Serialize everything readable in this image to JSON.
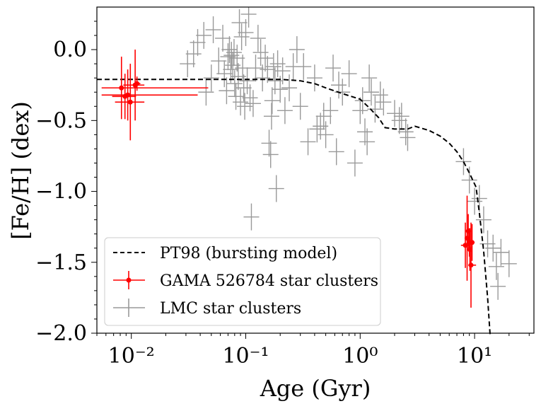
{
  "chart_data": {
    "type": "scatter",
    "xscale": "log",
    "xlim": [
      0.005,
      33
    ],
    "ylim": [
      -2.0,
      0.3
    ],
    "xlabel": "Age (Gyr)",
    "ylabel": "[Fe/H] (dex)",
    "x_ticks": [
      {
        "value": 0.01,
        "label": "10⁻²"
      },
      {
        "value": 0.1,
        "label": "10⁻¹"
      },
      {
        "value": 1,
        "label": "10⁰"
      },
      {
        "value": 10,
        "label": "10¹"
      }
    ],
    "y_ticks": [
      {
        "value": 0.0,
        "label": "0.0"
      },
      {
        "value": -0.5,
        "label": "−0.5"
      },
      {
        "value": -1.0,
        "label": "−1.0"
      },
      {
        "value": -1.5,
        "label": "−1.5"
      },
      {
        "value": -2.0,
        "label": "−2.0"
      }
    ],
    "legend": {
      "position": "lower-left",
      "entries": [
        {
          "label": "PT98 (bursting model)",
          "style": "dashed-line",
          "color": "#000000"
        },
        {
          "label": "GAMA 526784 star clusters",
          "style": "errorbar-point",
          "color": "#ff0000"
        },
        {
          "label": "LMC star clusters",
          "style": "errorbar-cross",
          "color": "#999999"
        }
      ]
    },
    "series": [
      {
        "name": "PT98 (bursting model)",
        "color": "#000000",
        "style": "dashed",
        "points": [
          [
            0.005,
            -0.21
          ],
          [
            0.1,
            -0.21
          ],
          [
            0.2,
            -0.21
          ],
          [
            0.3,
            -0.22
          ],
          [
            0.4,
            -0.24
          ],
          [
            0.5,
            -0.27
          ],
          [
            0.7,
            -0.31
          ],
          [
            1.0,
            -0.35
          ],
          [
            1.2,
            -0.41
          ],
          [
            1.45,
            -0.48
          ],
          [
            1.65,
            -0.55
          ],
          [
            2.0,
            -0.56
          ],
          [
            2.6,
            -0.56
          ],
          [
            3.0,
            -0.54
          ],
          [
            4.0,
            -0.57
          ],
          [
            5.0,
            -0.61
          ],
          [
            6.0,
            -0.66
          ],
          [
            7.0,
            -0.72
          ],
          [
            8.0,
            -0.79
          ],
          [
            9.0,
            -0.87
          ],
          [
            10.3,
            -0.97
          ],
          [
            11.0,
            -1.15
          ],
          [
            12.0,
            -1.42
          ],
          [
            13.0,
            -1.75
          ],
          [
            13.7,
            -2.05
          ]
        ]
      },
      {
        "name": "GAMA 526784 star clusters",
        "color": "#ff0000",
        "points": [
          {
            "x": 0.0082,
            "y": -0.27,
            "xlo": 0.0055,
            "xhi": 0.047,
            "yerr": 0.22
          },
          {
            "x": 0.0088,
            "y": -0.33,
            "xlo": 0.0068,
            "xhi": 0.011,
            "yerr": 0.16
          },
          {
            "x": 0.0093,
            "y": -0.32,
            "xlo": 0.0055,
            "xhi": 0.038,
            "yerr": 0.18
          },
          {
            "x": 0.0098,
            "y": -0.37,
            "xlo": 0.0072,
            "xhi": 0.013,
            "yerr": 0.27
          },
          {
            "x": 0.0108,
            "y": -0.25,
            "xlo": 0.0085,
            "xhi": 0.013,
            "yerr": 0.25
          },
          {
            "x": 0.0112,
            "y": -0.24,
            "xlo": 0.0105,
            "xhi": 0.012,
            "yerr": 0.05
          },
          {
            "x": 8.3,
            "y": -1.38,
            "xlo": 7.6,
            "xhi": 9.0,
            "yerr": 0.16
          },
          {
            "x": 8.6,
            "y": -1.33,
            "xlo": 8.2,
            "xhi": 9.1,
            "yerr": 0.3
          },
          {
            "x": 8.8,
            "y": -1.28,
            "xlo": 8.4,
            "xhi": 9.2,
            "yerr": 0.12
          },
          {
            "x": 9.0,
            "y": -1.36,
            "xlo": 8.6,
            "xhi": 9.4,
            "yerr": 0.1
          },
          {
            "x": 9.1,
            "y": -1.41,
            "xlo": 8.7,
            "xhi": 9.5,
            "yerr": 0.15
          },
          {
            "x": 9.3,
            "y": -1.52,
            "xlo": 8.8,
            "xhi": 10.3,
            "yerr": 0.3
          },
          {
            "x": 9.5,
            "y": -1.36,
            "xlo": 9.0,
            "xhi": 10.0,
            "yerr": 0.13
          }
        ]
      },
      {
        "name": "LMC star clusters",
        "color": "#999999",
        "points": [
          [
            0.031,
            -0.1
          ],
          [
            0.035,
            -0.03
          ],
          [
            0.038,
            0.05
          ],
          [
            0.043,
            0.1
          ],
          [
            0.045,
            -0.3
          ],
          [
            0.05,
            -0.2
          ],
          [
            0.052,
            0.14
          ],
          [
            0.058,
            -0.08
          ],
          [
            0.063,
            0.08
          ],
          [
            0.065,
            -0.17
          ],
          [
            0.068,
            -0.29
          ],
          [
            0.07,
            -0.05
          ],
          [
            0.072,
            0.0
          ],
          [
            0.074,
            -0.14
          ],
          [
            0.075,
            -0.04
          ],
          [
            0.077,
            -0.11
          ],
          [
            0.079,
            -0.02
          ],
          [
            0.08,
            -0.24
          ],
          [
            0.082,
            -0.33
          ],
          [
            0.084,
            -0.06
          ],
          [
            0.086,
            -0.19
          ],
          [
            0.088,
            0.19
          ],
          [
            0.09,
            -0.37
          ],
          [
            0.092,
            0.09
          ],
          [
            0.094,
            -0.13
          ],
          [
            0.096,
            -0.27
          ],
          [
            0.098,
            -0.4
          ],
          [
            0.1,
            0.12
          ],
          [
            0.103,
            -0.22
          ],
          [
            0.106,
            0.25
          ],
          [
            0.109,
            -0.34
          ],
          [
            0.112,
            -1.18
          ],
          [
            0.116,
            -0.38
          ],
          [
            0.122,
            -0.13
          ],
          [
            0.128,
            0.08
          ],
          [
            0.135,
            -0.02
          ],
          [
            0.14,
            -0.2
          ],
          [
            0.148,
            -0.06
          ],
          [
            0.155,
            -0.14
          ],
          [
            0.16,
            -0.66
          ],
          [
            0.165,
            -0.74
          ],
          [
            0.168,
            -0.47
          ],
          [
            0.17,
            -0.36
          ],
          [
            0.175,
            -0.12
          ],
          [
            0.18,
            -0.22
          ],
          [
            0.185,
            -0.98
          ],
          [
            0.19,
            -0.1
          ],
          [
            0.2,
            -0.28
          ],
          [
            0.21,
            -0.15
          ],
          [
            0.22,
            -0.43
          ],
          [
            0.24,
            -0.27
          ],
          [
            0.26,
            -0.12
          ],
          [
            0.28,
            0.0
          ],
          [
            0.3,
            -0.4
          ],
          [
            0.32,
            -0.12
          ],
          [
            0.35,
            -0.65
          ],
          [
            0.4,
            -0.2
          ],
          [
            0.42,
            -0.56
          ],
          [
            0.45,
            -0.54
          ],
          [
            0.48,
            -0.47
          ],
          [
            0.5,
            -0.6
          ],
          [
            0.55,
            -0.43
          ],
          [
            0.58,
            -0.13
          ],
          [
            0.62,
            -0.72
          ],
          [
            0.65,
            -0.25
          ],
          [
            0.7,
            -0.3
          ],
          [
            0.8,
            -0.17
          ],
          [
            0.9,
            -0.8
          ],
          [
            1.0,
            -0.43
          ],
          [
            1.05,
            -0.36
          ],
          [
            1.1,
            -0.58
          ],
          [
            1.15,
            -0.65
          ],
          [
            1.2,
            -0.2
          ],
          [
            1.25,
            -0.3
          ],
          [
            1.35,
            -0.42
          ],
          [
            1.5,
            -0.32
          ],
          [
            1.6,
            -0.37
          ],
          [
            2.0,
            -0.45
          ],
          [
            2.2,
            -0.5
          ],
          [
            2.3,
            -0.47
          ],
          [
            2.5,
            -0.58
          ],
          [
            2.6,
            -0.62
          ],
          [
            8.0,
            -0.79
          ],
          [
            9.0,
            -0.92
          ],
          [
            10.0,
            -1.07
          ],
          [
            11.0,
            -1.05
          ],
          [
            12.0,
            -1.2
          ],
          [
            13.0,
            -1.37
          ],
          [
            14.5,
            -1.4
          ],
          [
            15.5,
            -1.53
          ],
          [
            16.0,
            -1.67
          ],
          [
            17.0,
            -1.43
          ],
          [
            20.0,
            -1.51
          ]
        ]
      }
    ]
  }
}
